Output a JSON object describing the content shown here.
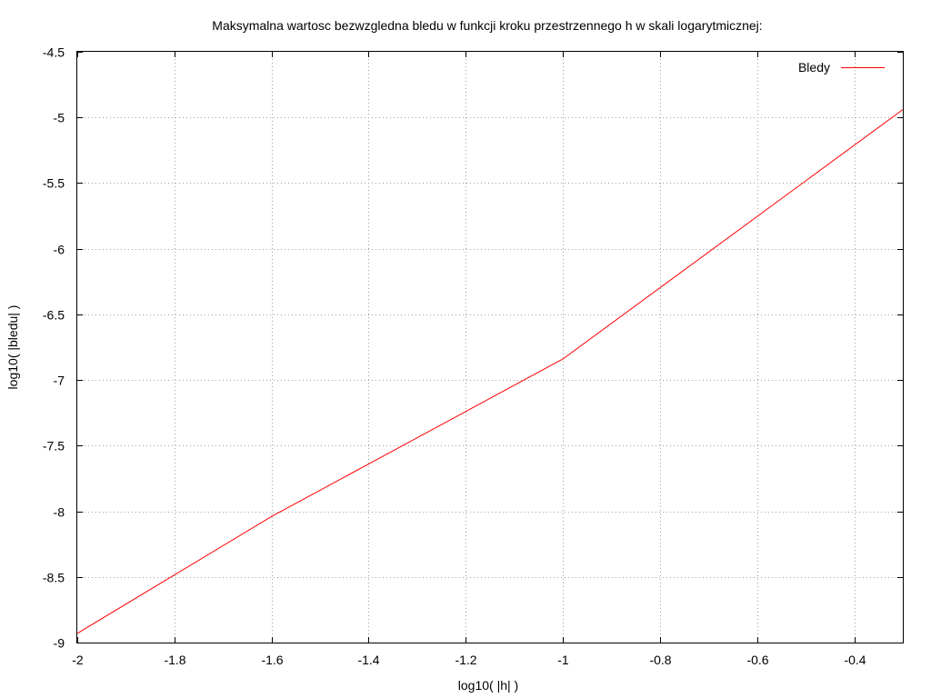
{
  "chart_data": {
    "type": "line",
    "title": "Maksymalna wartosc bezwzgledna bledu w funkcji kroku przestrzennego h w skali logarytmicznej:",
    "xlabel": "log10( |h| )",
    "ylabel": "log10( |bledu| )",
    "xlim": [
      -2,
      -0.3
    ],
    "ylim": [
      -9,
      -4.5
    ],
    "xticks": [
      -2,
      -1.8,
      -1.6,
      -1.4,
      -1.2,
      -1,
      -0.8,
      -0.6,
      -0.4
    ],
    "xtick_labels": [
      "-2",
      "-1.8",
      "-1.6",
      "-1.4",
      "-1.2",
      "-1",
      "-0.8",
      "-0.6",
      "-0.4"
    ],
    "yticks": [
      -9,
      -8.5,
      -8,
      -7.5,
      -7,
      -6.5,
      -6,
      -5.5,
      -5,
      -4.5
    ],
    "ytick_labels": [
      "-9",
      "-8.5",
      "-8",
      "-7.5",
      "-7",
      "-6.5",
      "-6",
      "-5.5",
      "-5",
      "-4.5"
    ],
    "grid": true,
    "legend_position": "top-right",
    "series": [
      {
        "name": "Bledy",
        "color": "#ff0000",
        "x": [
          -2,
          -1.6,
          -1,
          -0.3
        ],
        "y": [
          -8.93,
          -8.04,
          -6.84,
          -4.94
        ]
      }
    ]
  }
}
